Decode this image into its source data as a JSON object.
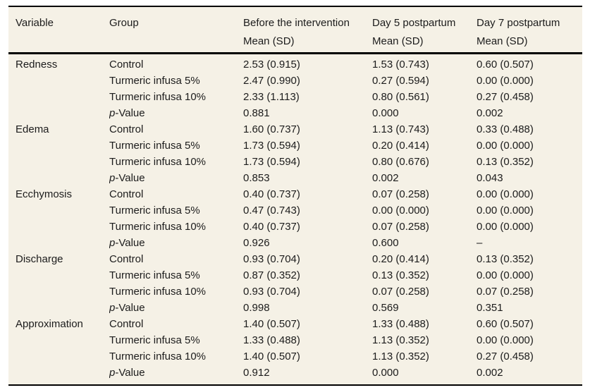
{
  "colors": {
    "table_background": "#f5f1e6",
    "rule": "#000000",
    "text": "#1c1c1c",
    "page_background": "#ffffff"
  },
  "table": {
    "columns": [
      "Variable",
      "Group",
      "Before the intervention",
      "Day 5 postpartum",
      "Day 7 postpartum"
    ],
    "subheader": [
      "",
      "",
      "Mean (SD)",
      "Mean (SD)",
      "Mean (SD)"
    ],
    "sections": [
      {
        "variable": "Redness",
        "rows": [
          {
            "group": "Control",
            "before": "2.53 (0.915)",
            "day5": "1.53 (0.743)",
            "day7": "0.60 (0.507)"
          },
          {
            "group": "Turmeric infusa 5%",
            "before": "2.47 (0.990)",
            "day5": "0.27 (0.594)",
            "day7": "0.00 (0.000)"
          },
          {
            "group": "Turmeric infusa 10%",
            "before": "2.33 (1.113)",
            "day5": "0.80 (0.561)",
            "day7": "0.27 (0.458)"
          },
          {
            "group": "p-Value",
            "italic_first": true,
            "before": "0.881",
            "day5": "0.000",
            "day7": "0.002"
          }
        ]
      },
      {
        "variable": "Edema",
        "rows": [
          {
            "group": "Control",
            "before": "1.60 (0.737)",
            "day5": "1.13 (0.743)",
            "day7": "0.33 (0.488)"
          },
          {
            "group": "Turmeric infusa 5%",
            "before": "1.73 (0.594)",
            "day5": "0.20 (0.414)",
            "day7": "0.00 (0.000)"
          },
          {
            "group": "Turmeric infusa 10%",
            "before": "1.73 (0.594)",
            "day5": "0.80 (0.676)",
            "day7": "0.13 (0.352)"
          },
          {
            "group": "p-Value",
            "italic_first": true,
            "before": "0.853",
            "day5": "0.002",
            "day7": "0.043"
          }
        ]
      },
      {
        "variable": "Ecchymosis",
        "rows": [
          {
            "group": "Control",
            "before": "0.40 (0.737)",
            "day5": "0.07 (0.258)",
            "day7": "0.00 (0.000)"
          },
          {
            "group": "Turmeric infusa 5%",
            "before": "0.47 (0.743)",
            "day5": "0.00 (0.000)",
            "day7": "0.00 (0.000)"
          },
          {
            "group": "Turmeric infusa 10%",
            "before": "0.40 (0.737)",
            "day5": "0.07 (0.258)",
            "day7": "0.00 (0.000)"
          },
          {
            "group": "p-Value",
            "italic_first": true,
            "before": "0.926",
            "day5": "0.600",
            "day7": "–"
          }
        ]
      },
      {
        "variable": "Discharge",
        "rows": [
          {
            "group": "Control",
            "before": "0.93 (0.704)",
            "day5": "0.20 (0.414)",
            "day7": "0.13 (0.352)"
          },
          {
            "group": "Turmeric infusa 5%",
            "before": "0.87 (0.352)",
            "day5": "0.13 (0.352)",
            "day7": "0.00 (0.000)"
          },
          {
            "group": "Turmeric infusa 10%",
            "before": "0.93 (0.704)",
            "day5": "0.07 (0.258)",
            "day7": "0.07 (0.258)"
          },
          {
            "group": "p-Value",
            "italic_first": true,
            "before": "0.998",
            "day5": "0.569",
            "day7": "0.351"
          }
        ]
      },
      {
        "variable": "Approximation",
        "rows": [
          {
            "group": "Control",
            "before": "1.40 (0.507)",
            "day5": "1.33 (0.488)",
            "day7": "0.60 (0.507)"
          },
          {
            "group": "Turmeric infusa 5%",
            "before": "1.33 (0.488)",
            "day5": "1.13 (0.352)",
            "day7": "0.00 (0.000)"
          },
          {
            "group": "Turmeric infusa 10%",
            "before": "1.40 (0.507)",
            "day5": "1.13 (0.352)",
            "day7": "0.27 (0.458)"
          },
          {
            "group": "p-Value",
            "italic_first": true,
            "before": "0.912",
            "day5": "0.000",
            "day7": "0.002"
          }
        ]
      }
    ]
  }
}
